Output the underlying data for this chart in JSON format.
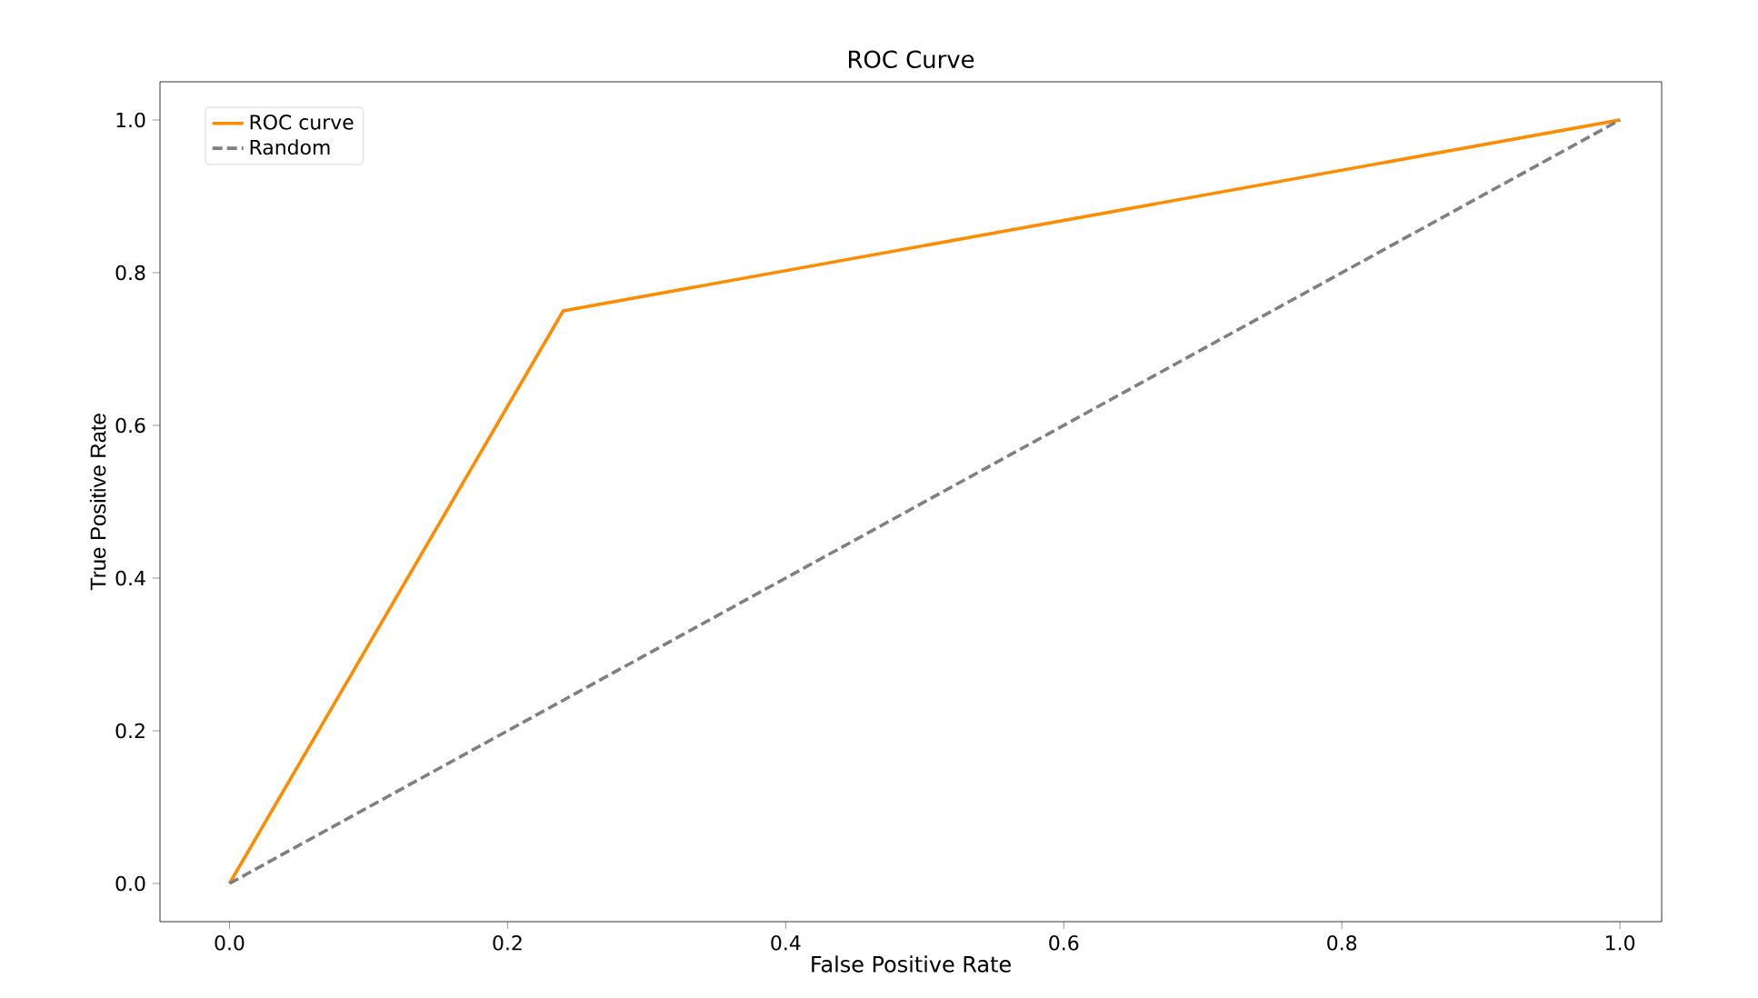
{
  "chart_data": {
    "type": "line",
    "title": "ROC Curve",
    "xlabel": "False Positive Rate",
    "ylabel": "True Positive Rate",
    "xlim": [
      -0.05,
      1.03
    ],
    "ylim": [
      -0.05,
      1.05
    ],
    "xticks": [
      {
        "value": 0,
        "label": "0.0"
      },
      0.2,
      0.4,
      0.6,
      0.8,
      {
        "value": 1,
        "label": "1.0"
      }
    ],
    "yticks": [
      {
        "value": 0,
        "label": "0.0"
      },
      0.2,
      0.4,
      0.6,
      0.8,
      {
        "value": 1,
        "label": "1.0"
      }
    ],
    "grid": false,
    "legend": "top left",
    "marker": "none",
    "series": [
      {
        "name": "ROC curve",
        "color": "#ff8c00",
        "line_style": "solid",
        "x": [
          0.0,
          0.24,
          1.0
        ],
        "values": [
          0.0,
          0.75,
          1.0
        ]
      },
      {
        "name": "Random",
        "color": "#808080",
        "line_style": "dashed",
        "x": [
          0.0,
          1.0
        ],
        "values": [
          0.0,
          1.0
        ]
      }
    ]
  }
}
